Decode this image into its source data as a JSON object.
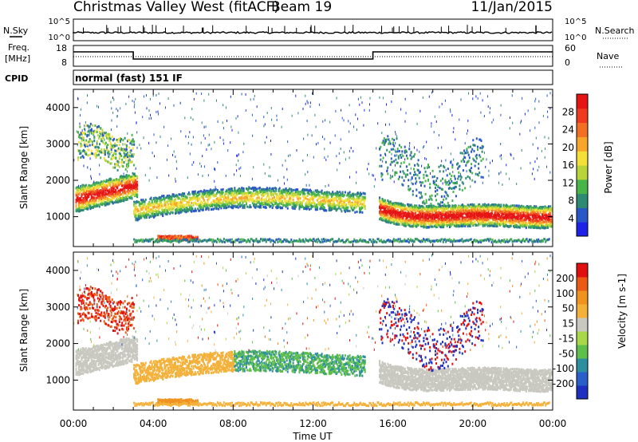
{
  "header": {
    "station": "Christmas Valley West (fitACF)",
    "beam": "Beam 19",
    "date": "11/Jan/2015"
  },
  "noise_panel": {
    "left_label": "N.Sky",
    "right_label": "N.Search",
    "left_ticks": [
      "10^5",
      "10^0"
    ],
    "right_ticks": [
      "10^5",
      "10^0"
    ]
  },
  "freq_panel": {
    "left_label_1": "Freq.",
    "left_label_2": "[MHz]",
    "right_label": "Nave",
    "left_ticks": [
      "18",
      "8"
    ],
    "right_ticks": [
      "60",
      "0"
    ],
    "freq_segments": [
      {
        "t0": 0,
        "t1": 3,
        "mhz": 15
      },
      {
        "t0": 3,
        "t1": 15,
        "mhz": 10.5
      },
      {
        "t0": 15,
        "t1": 24,
        "mhz": 15
      }
    ]
  },
  "cpid": {
    "label": "CPID",
    "mode": "normal (fast) 151 IF"
  },
  "chart_data": [
    {
      "type": "heatmap",
      "name": "power",
      "ylabel": "Slant Range [km]",
      "xlabel": "Time UT",
      "xlim": [
        0,
        24
      ],
      "ylim": [
        180,
        4500
      ],
      "x_ticks": [
        "00:00",
        "04:00",
        "08:00",
        "12:00",
        "16:00",
        "20:00",
        "00:00"
      ],
      "y_ticks": [
        "1000",
        "2000",
        "3000",
        "4000"
      ],
      "colorbar": {
        "label": "Power [dB]",
        "ticks": [
          "28",
          "24",
          "20",
          "16",
          "12",
          "8",
          "4"
        ],
        "colors": [
          "#1e22e6",
          "#2a57c8",
          "#2f8a74",
          "#49b549",
          "#b8d43a",
          "#f5e03a",
          "#f7a52b",
          "#f27024",
          "#ee3b20",
          "#e61414"
        ]
      }
    },
    {
      "type": "heatmap",
      "name": "velocity",
      "ylabel": "Slant Range [km]",
      "xlabel": "Time UT",
      "xlim": [
        0,
        24
      ],
      "ylim": [
        180,
        4500
      ],
      "x_ticks": [
        "00:00",
        "04:00",
        "08:00",
        "12:00",
        "16:00",
        "20:00",
        "00:00"
      ],
      "y_ticks": [
        "1000",
        "2000",
        "3000",
        "4000"
      ],
      "colorbar": {
        "label": "Velocity [m s-1]",
        "ticks": [
          "200",
          "100",
          "50",
          "15",
          "-15",
          "-50",
          "-100",
          "-200"
        ],
        "colors": [
          "#1f2fbf",
          "#2a5ec9",
          "#2d8ea0",
          "#5ebf4a",
          "#a8d848",
          "#c8c8c0",
          "#f3b13a",
          "#f0921e",
          "#ea5a15",
          "#e01010"
        ]
      }
    }
  ],
  "time_axis_label": "Time UT"
}
